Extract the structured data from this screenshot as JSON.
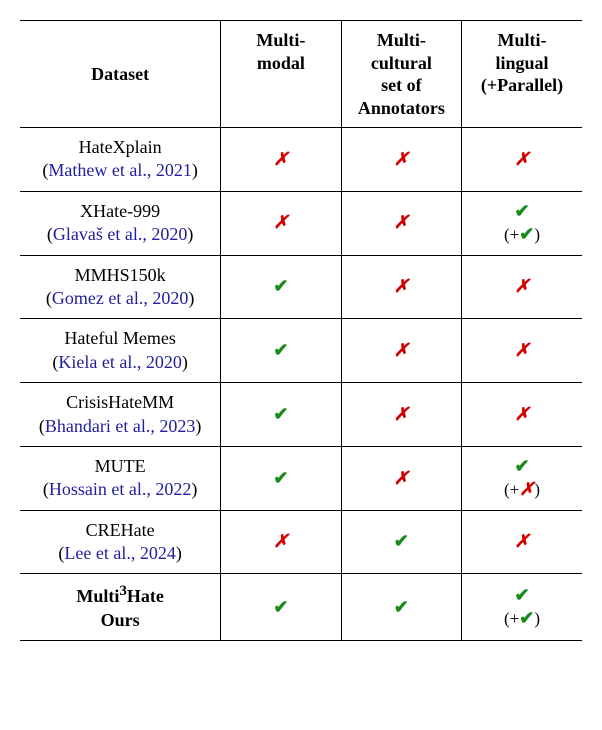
{
  "table": {
    "headers": {
      "dataset": "Dataset",
      "multimodal": "Multi-\nmodal",
      "multicultural": "Multi-\ncultural\nset of\nAnnotators",
      "multilingual": "Multi-\nlingual\n(+Parallel)"
    },
    "rows": [
      {
        "name": "HateXplain",
        "citation": "Mathew et al., 2021",
        "multimodal": "cross",
        "multicultural": "cross",
        "multilingual": "cross",
        "parallel": null,
        "bold": false
      },
      {
        "name": "XHate-999",
        "citation": "Glavaš et al., 2020",
        "multimodal": "cross",
        "multicultural": "cross",
        "multilingual": "check",
        "parallel": "check",
        "bold": false
      },
      {
        "name": "MMHS150k",
        "citation": "Gomez et al., 2020",
        "multimodal": "check",
        "multicultural": "cross",
        "multilingual": "cross",
        "parallel": null,
        "bold": false
      },
      {
        "name": "Hateful Memes",
        "citation": "Kiela et al., 2020",
        "multimodal": "check",
        "multicultural": "cross",
        "multilingual": "cross",
        "parallel": null,
        "bold": false
      },
      {
        "name": "CrisisHateMM",
        "citation": "Bhandari et al., 2023",
        "multimodal": "check",
        "multicultural": "cross",
        "multilingual": "cross",
        "parallel": null,
        "bold": false
      },
      {
        "name": "MUTE",
        "citation": "Hossain et al., 2022",
        "multimodal": "check",
        "multicultural": "cross",
        "multilingual": "check",
        "parallel": "cross",
        "bold": false
      },
      {
        "name": "CREHate",
        "citation": "Lee et al., 2024",
        "multimodal": "cross",
        "multicultural": "check",
        "multilingual": "cross",
        "parallel": null,
        "bold": false
      },
      {
        "name": "Multi³Hate",
        "citation_plain": "Ours",
        "multimodal": "check",
        "multicultural": "check",
        "multilingual": "check",
        "parallel": "check",
        "bold": true
      }
    ],
    "marks": {
      "check": "✔",
      "cross": "✗"
    },
    "colors": {
      "check": "#1a8a1a",
      "cross": "#d40000",
      "citation": "#2020a0",
      "text": "#000000",
      "background": "#ffffff",
      "border": "#000000"
    }
  }
}
